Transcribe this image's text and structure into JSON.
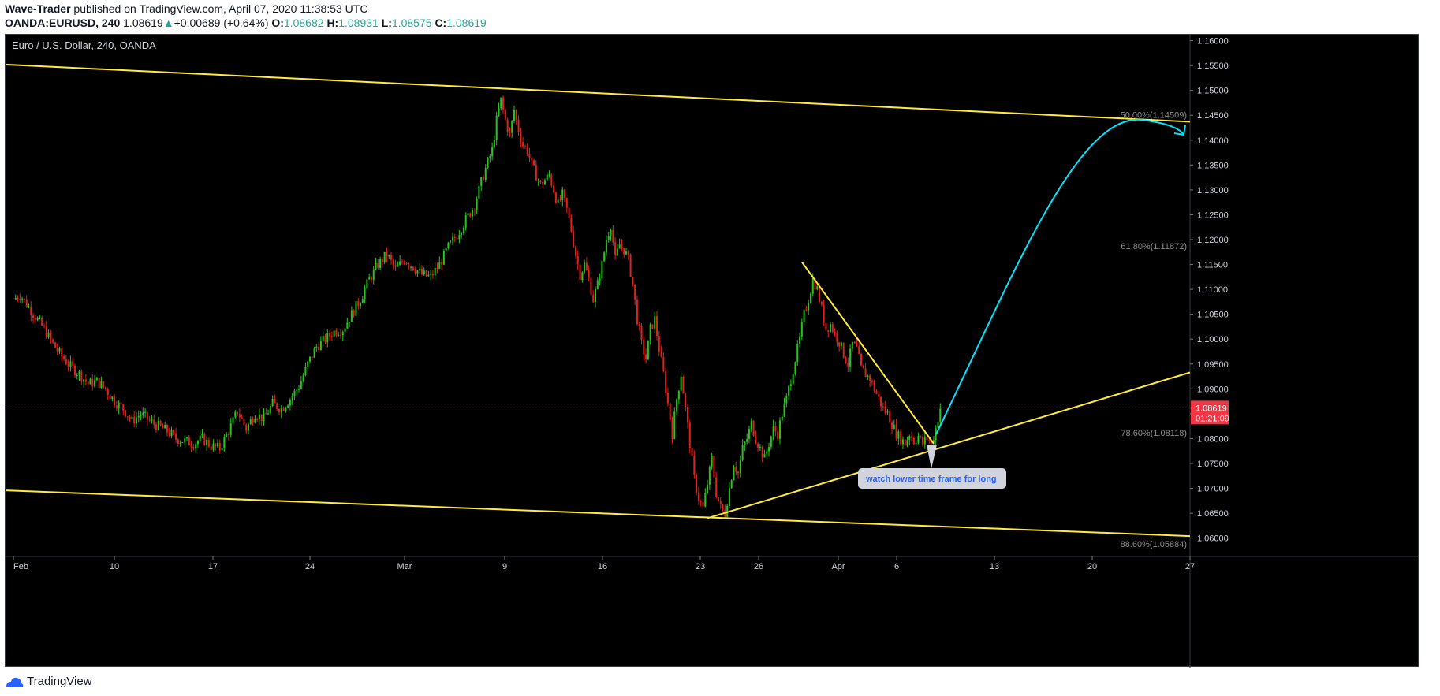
{
  "header": {
    "author": "Wave-Trader",
    "published_text": "published on TradingView.com, April 07, 2020 11:38:53 UTC",
    "symbol": "OANDA:EURUSD, 240",
    "last": "1.08619",
    "change_arrow": "▲",
    "change": "+0.00689 (+0.64%)",
    "o_label": "O:",
    "o_value": "1.08682",
    "h_label": "H:",
    "h_value": "1.08931",
    "l_label": "L:",
    "l_value": "1.08575",
    "c_label": "C:",
    "c_value": "1.08619"
  },
  "chart_data": {
    "type": "candlestick",
    "title": "Euro / U.S. Dollar, 240, OANDA",
    "ylim": [
      1.0563,
      1.1612
    ],
    "y_ticks": [
      "1.16000",
      "1.15500",
      "1.15000",
      "1.14500",
      "1.14000",
      "1.13500",
      "1.13000",
      "1.12500",
      "1.12000",
      "1.11500",
      "1.11000",
      "1.10500",
      "1.10000",
      "1.09500",
      "1.09000",
      "1.08500",
      "1.08000",
      "1.07500",
      "1.07000",
      "1.06500",
      "1.06000"
    ],
    "x_ticks": [
      "Feb",
      "10",
      "17",
      "24",
      "Mar",
      "9",
      "16",
      "23",
      "26",
      "Apr",
      "6",
      "13",
      "20",
      "27"
    ],
    "price_line": {
      "value": "1.08619",
      "countdown": "01:21:09",
      "color": "#f23645"
    },
    "fib_levels": [
      {
        "label": "50.00%(1.14509)",
        "value": 1.14509
      },
      {
        "label": "61.80%(1.11872)",
        "value": 1.11872
      },
      {
        "label": "78.60%(1.08118)",
        "value": 1.08118
      },
      {
        "label": "88.60%(1.05884)",
        "value": 1.05884
      }
    ],
    "trend_lines": [
      {
        "name": "channel-top",
        "from": [
          "Jan 31",
          1.1552
        ],
        "to": [
          "Apr 27",
          1.1437
        ],
        "color": "#ffeb3b"
      },
      {
        "name": "channel-bottom",
        "from": [
          "Jan 31",
          1.0696
        ],
        "to": [
          "Apr 27",
          1.0604
        ],
        "color": "#ffeb3b"
      },
      {
        "name": "rising-support",
        "from": [
          "Mar 23",
          1.064
        ],
        "to": [
          "Apr 27",
          1.0933
        ],
        "color": "#ffeb3b"
      },
      {
        "name": "falling-resistance",
        "from": [
          "Mar 27",
          1.1155
        ],
        "to": [
          "Apr 7",
          1.079
        ],
        "color": "#ffeb3b"
      }
    ],
    "projection_arrow": {
      "color": "#00e5ff"
    },
    "annotation": {
      "text": "watch lower time frame for long"
    },
    "colors": {
      "up": "#26c61a",
      "down": "#e0221c",
      "background": "#000000",
      "axis_text": "#d1d4dc",
      "fib_text": "#8c8c8c"
    },
    "close_path": [
      [
        0,
        1.108
      ],
      [
        3,
        1.109
      ],
      [
        6,
        1.107
      ],
      [
        10,
        1.1045
      ],
      [
        14,
        1.102
      ],
      [
        18,
        1.099
      ],
      [
        22,
        1.0965
      ],
      [
        26,
        1.0945
      ],
      [
        30,
        1.093
      ],
      [
        34,
        1.091
      ],
      [
        38,
        1.0915
      ],
      [
        42,
        1.09
      ],
      [
        46,
        1.0875
      ],
      [
        50,
        1.086
      ],
      [
        54,
        1.0835
      ],
      [
        58,
        1.085
      ],
      [
        62,
        1.0835
      ],
      [
        66,
        1.0825
      ],
      [
        70,
        1.0815
      ],
      [
        74,
        1.08
      ],
      [
        78,
        1.0795
      ],
      [
        82,
        1.079
      ],
      [
        86,
        1.08
      ],
      [
        90,
        1.0785
      ],
      [
        94,
        1.078
      ],
      [
        98,
        1.0815
      ],
      [
        102,
        1.0855
      ],
      [
        106,
        1.082
      ],
      [
        110,
        1.085
      ],
      [
        114,
        1.084
      ],
      [
        118,
        1.087
      ],
      [
        122,
        1.086
      ],
      [
        126,
        1.088
      ],
      [
        130,
        1.0905
      ],
      [
        134,
        1.095
      ],
      [
        138,
        1.0985
      ],
      [
        142,
        1.1
      ],
      [
        146,
        1.1015
      ],
      [
        150,
        1.102
      ],
      [
        154,
        1.105
      ],
      [
        158,
        1.108
      ],
      [
        162,
        1.112
      ],
      [
        166,
        1.115
      ],
      [
        170,
        1.117
      ],
      [
        174,
        1.114
      ],
      [
        178,
        1.116
      ],
      [
        182,
        1.1145
      ],
      [
        186,
        1.113
      ],
      [
        190,
        1.1125
      ],
      [
        194,
        1.115
      ],
      [
        198,
        1.1185
      ],
      [
        202,
        1.121
      ],
      [
        206,
        1.124
      ],
      [
        210,
        1.127
      ],
      [
        214,
        1.133
      ],
      [
        218,
        1.138
      ],
      [
        220,
        1.144
      ],
      [
        222,
        1.148
      ],
      [
        224,
        1.144
      ],
      [
        226,
        1.141
      ],
      [
        228,
        1.146
      ],
      [
        230,
        1.142
      ],
      [
        232,
        1.139
      ],
      [
        234,
        1.138
      ],
      [
        236,
        1.135
      ],
      [
        238,
        1.133
      ],
      [
        240,
        1.131
      ],
      [
        242,
        1.132
      ],
      [
        244,
        1.133
      ],
      [
        246,
        1.13
      ],
      [
        248,
        1.127
      ],
      [
        250,
        1.129
      ],
      [
        252,
        1.126
      ],
      [
        254,
        1.122
      ],
      [
        256,
        1.117
      ],
      [
        258,
        1.113
      ],
      [
        260,
        1.115
      ],
      [
        262,
        1.112
      ],
      [
        264,
        1.108
      ],
      [
        266,
        1.111
      ],
      [
        268,
        1.115
      ],
      [
        270,
        1.12
      ],
      [
        272,
        1.123
      ],
      [
        274,
        1.116
      ],
      [
        276,
        1.119
      ],
      [
        278,
        1.118
      ],
      [
        280,
        1.116
      ],
      [
        282,
        1.111
      ],
      [
        284,
        1.104
      ],
      [
        286,
        1.099
      ],
      [
        288,
        1.096
      ],
      [
        290,
        1.102
      ],
      [
        292,
        1.104
      ],
      [
        294,
        1.098
      ],
      [
        296,
        1.093
      ],
      [
        298,
        1.087
      ],
      [
        300,
        1.081
      ],
      [
        302,
        1.088
      ],
      [
        304,
        1.093
      ],
      [
        306,
        1.086
      ],
      [
        308,
        1.079
      ],
      [
        310,
        1.072
      ],
      [
        312,
        1.068
      ],
      [
        314,
        1.066
      ],
      [
        316,
        1.071
      ],
      [
        318,
        1.076
      ],
      [
        320,
        1.069
      ],
      [
        322,
        1.066
      ],
      [
        324,
        1.065
      ],
      [
        326,
        1.07
      ],
      [
        328,
        1.075
      ],
      [
        330,
        1.073
      ],
      [
        332,
        1.078
      ],
      [
        334,
        1.08
      ],
      [
        336,
        1.083
      ],
      [
        338,
        1.08
      ],
      [
        340,
        1.078
      ],
      [
        342,
        1.076
      ],
      [
        344,
        1.079
      ],
      [
        346,
        1.082
      ],
      [
        348,
        1.081
      ],
      [
        350,
        1.085
      ],
      [
        352,
        1.088
      ],
      [
        354,
        1.092
      ],
      [
        356,
        1.096
      ],
      [
        358,
        1.1
      ],
      [
        360,
        1.105
      ],
      [
        362,
        1.108
      ],
      [
        364,
        1.112
      ],
      [
        366,
        1.11
      ],
      [
        368,
        1.106
      ],
      [
        370,
        1.102
      ],
      [
        372,
        1.103
      ],
      [
        374,
        1.101
      ],
      [
        376,
        1.0995
      ],
      [
        378,
        1.097
      ],
      [
        380,
        1.095
      ],
      [
        382,
        1.099
      ],
      [
        384,
        1.098
      ],
      [
        386,
        1.094
      ],
      [
        388,
        1.093
      ],
      [
        390,
        1.092
      ],
      [
        392,
        1.09
      ],
      [
        394,
        1.088
      ],
      [
        396,
        1.086
      ],
      [
        398,
        1.085
      ],
      [
        400,
        1.083
      ],
      [
        402,
        1.081
      ],
      [
        404,
        1.08
      ],
      [
        406,
        1.079
      ],
      [
        408,
        1.081
      ],
      [
        410,
        1.0795
      ],
      [
        412,
        1.0805
      ],
      [
        414,
        1.079
      ],
      [
        416,
        1.08
      ],
      [
        418,
        1.079
      ],
      [
        420,
        1.082
      ],
      [
        422,
        1.0862
      ]
    ]
  },
  "footer": {
    "brand": "TradingView"
  }
}
